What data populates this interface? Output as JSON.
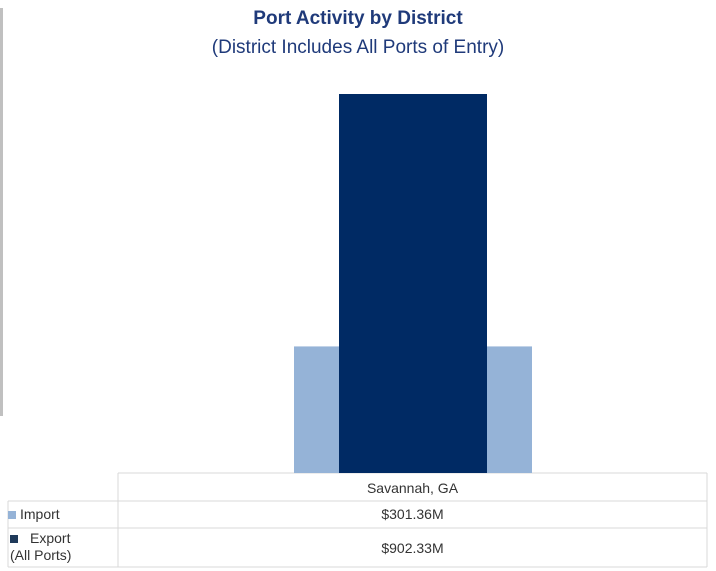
{
  "chart_data": {
    "type": "bar",
    "title": "Port Activity by District",
    "subtitle": "(District Includes All Ports of Entry)",
    "categories": [
      "Savannah, GA"
    ],
    "series": [
      {
        "name": "Import",
        "values": [
          301.36
        ],
        "label": "$301.36M",
        "color": "#95b3d7"
      },
      {
        "name": "Export (All Ports)",
        "name_line1": "Export",
        "name_line2": "(All Ports)",
        "values": [
          902.33
        ],
        "label": "$902.33M",
        "color": "#002a64"
      }
    ],
    "ylim": [
      0,
      1000
    ],
    "grid": false,
    "legend": "data-table-left"
  }
}
